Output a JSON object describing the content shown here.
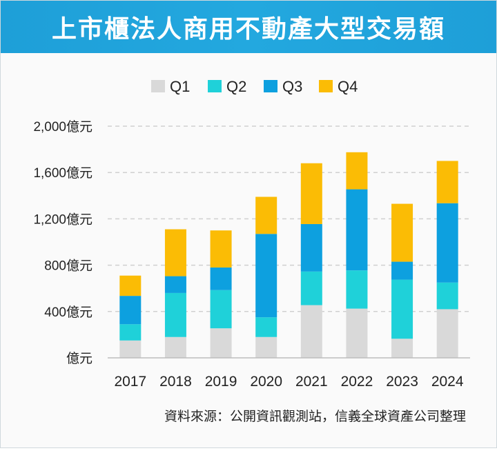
{
  "chart_data": {
    "type": "bar",
    "stacked": true,
    "title": "上市櫃法人商用不動產大型交易額",
    "categories": [
      "2017",
      "2018",
      "2019",
      "2020",
      "2021",
      "2022",
      "2023",
      "2024"
    ],
    "series": [
      {
        "name": "Q1",
        "color": "#d9d9d9",
        "values": [
          150,
          180,
          255,
          180,
          455,
          425,
          165,
          420
        ]
      },
      {
        "name": "Q2",
        "color": "#1fd1d9",
        "values": [
          140,
          380,
          330,
          170,
          290,
          330,
          510,
          230
        ]
      },
      {
        "name": "Q3",
        "color": "#0da0df",
        "values": [
          245,
          145,
          195,
          720,
          410,
          700,
          155,
          685
        ]
      },
      {
        "name": "Q4",
        "color": "#fbbc05",
        "values": [
          175,
          405,
          320,
          320,
          525,
          320,
          500,
          365
        ]
      }
    ],
    "y_ticks": [
      0,
      400,
      800,
      1200,
      1600,
      2000
    ],
    "y_tick_labels": [
      "億元",
      "400億元",
      "800億元",
      "1,200億元",
      "1,600億元",
      "2,000億元"
    ],
    "ylim": [
      0,
      2000
    ],
    "legend_position": "top",
    "grid": true,
    "xlabel": "",
    "ylabel": ""
  },
  "source_note": "資料來源：公開資訊觀測站，信義全球資產公司整理"
}
